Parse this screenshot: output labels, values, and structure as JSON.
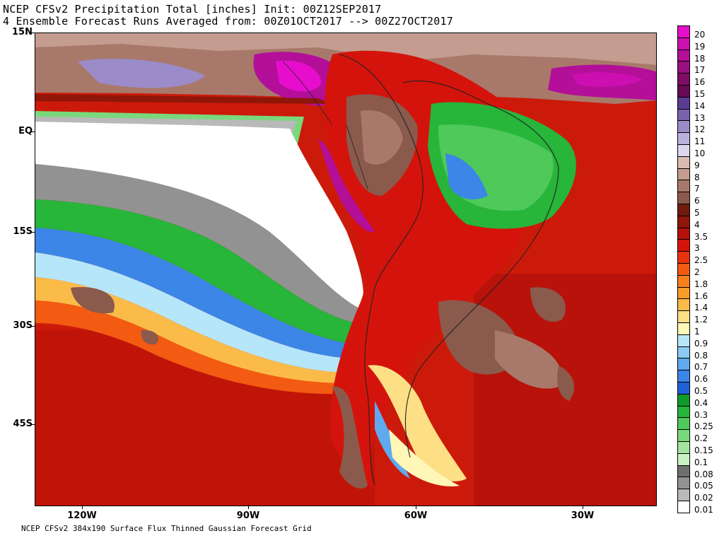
{
  "header": {
    "title_line1": "NCEP CFSv2 Precipitation Total [inches] Init: 00Z12SEP2017",
    "title_line2": "4 Ensemble Forecast Runs Averaged from: 00Z01OCT2017 --> 00Z27OCT2017"
  },
  "footer": {
    "text": "NCEP CFSv2 384x190 Surface Flux Thinned Gaussian Forecast Grid"
  },
  "axes": {
    "latitude_labels": [
      "15N",
      "EQ",
      "15S",
      "30S",
      "45S"
    ],
    "longitude_labels": [
      "120W",
      "90W",
      "60W",
      "30W"
    ]
  },
  "legend": {
    "entries": [
      {
        "label": "20",
        "color": "#e60ecc"
      },
      {
        "label": "19",
        "color": "#cc0fb0"
      },
      {
        "label": "18",
        "color": "#b30f99"
      },
      {
        "label": "17",
        "color": "#990f80"
      },
      {
        "label": "16",
        "color": "#800c66"
      },
      {
        "label": "15",
        "color": "#660a55"
      },
      {
        "label": "14",
        "color": "#5a3c93"
      },
      {
        "label": "13",
        "color": "#7a62b0"
      },
      {
        "label": "12",
        "color": "#9b8bc8"
      },
      {
        "label": "11",
        "color": "#bab0dd"
      },
      {
        "label": "10",
        "color": "#dcd6ee"
      },
      {
        "label": "9",
        "color": "#dbbcb3"
      },
      {
        "label": "8",
        "color": "#c49c90"
      },
      {
        "label": "7",
        "color": "#a8796b"
      },
      {
        "label": "6",
        "color": "#8a5a4d"
      },
      {
        "label": "5",
        "color": "#701c0c"
      },
      {
        "label": "4",
        "color": "#8f1609"
      },
      {
        "label": "3.5",
        "color": "#b3110a"
      },
      {
        "label": "3",
        "color": "#d4140c"
      },
      {
        "label": "2.5",
        "color": "#e8340e"
      },
      {
        "label": "2",
        "color": "#f35a12"
      },
      {
        "label": "1.8",
        "color": "#f8801a"
      },
      {
        "label": "1.6",
        "color": "#f99d2a"
      },
      {
        "label": "1.4",
        "color": "#fbbb48"
      },
      {
        "label": "1.2",
        "color": "#fde086"
      },
      {
        "label": "1",
        "color": "#fff7b8"
      },
      {
        "label": "0.9",
        "color": "#b6e6fa"
      },
      {
        "label": "0.8",
        "color": "#8ccbf4"
      },
      {
        "label": "0.7",
        "color": "#5fa9ee"
      },
      {
        "label": "0.6",
        "color": "#3b86e6"
      },
      {
        "label": "0.5",
        "color": "#1e62d6"
      },
      {
        "label": "0.4",
        "color": "#0f9a2a"
      },
      {
        "label": "0.3",
        "color": "#27b53a"
      },
      {
        "label": "0.25",
        "color": "#4ec95a"
      },
      {
        "label": "0.2",
        "color": "#7ad87c"
      },
      {
        "label": "0.15",
        "color": "#a3e59e"
      },
      {
        "label": "0.1",
        "color": "#c9f2c3"
      },
      {
        "label": "0.08",
        "color": "#6e6e6e"
      },
      {
        "label": "0.05",
        "color": "#929292"
      },
      {
        "label": "0.02",
        "color": "#b9b9b9"
      },
      {
        "label": "0.01",
        "color": "#ffffff"
      }
    ]
  }
}
